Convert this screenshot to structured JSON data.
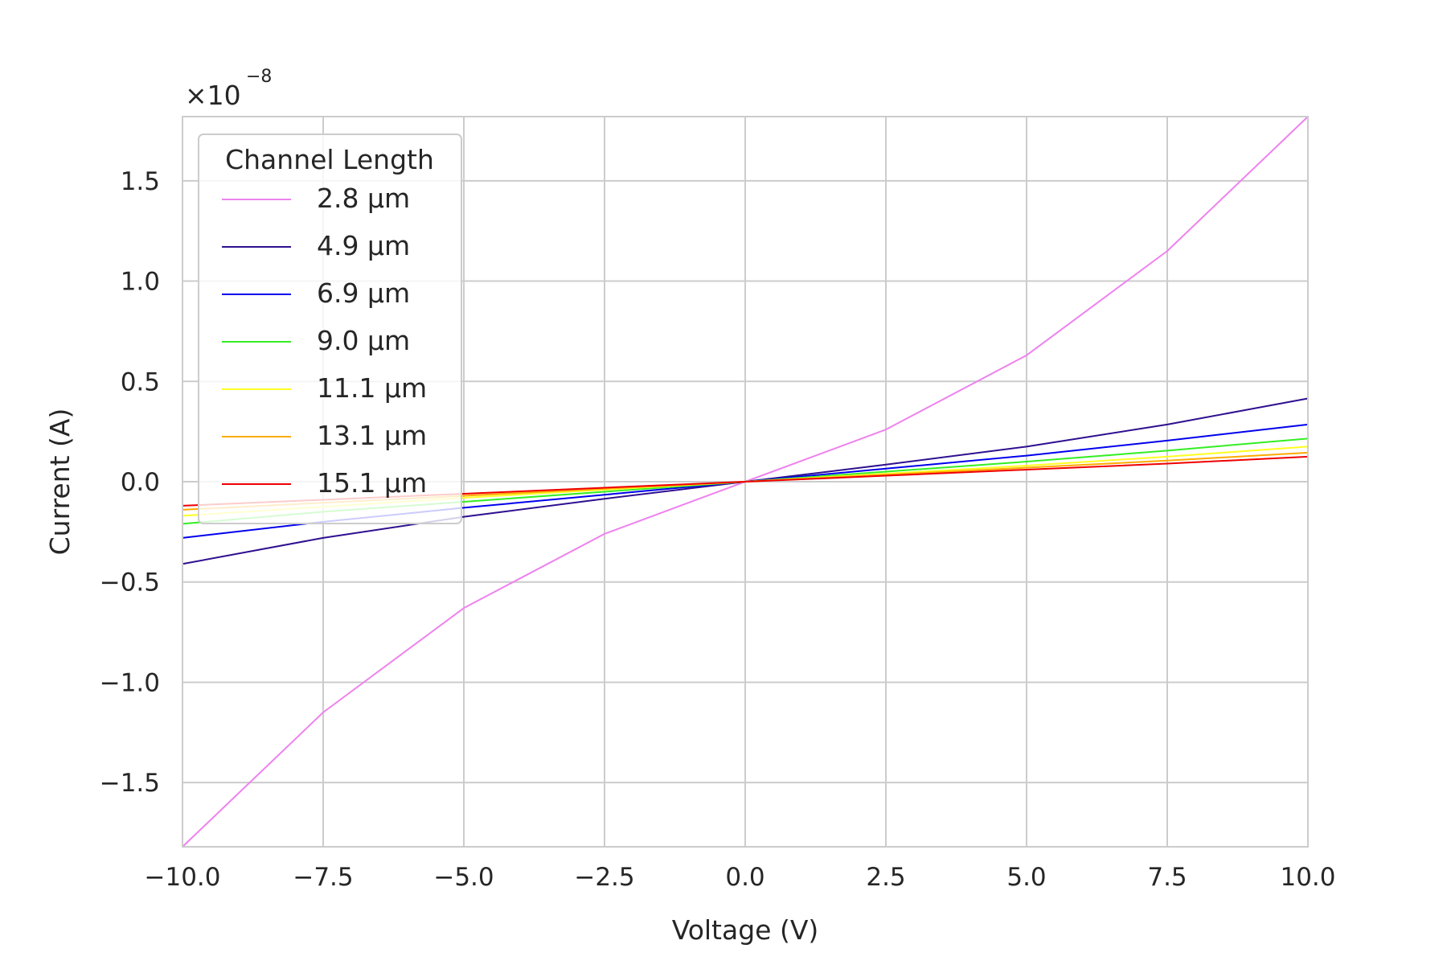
{
  "chart_data": {
    "type": "line",
    "xlabel": "Voltage (V)",
    "ylabel": "Current (A)",
    "y_offset_text": "×10",
    "y_offset_exponent": "−8",
    "xlim": [
      -10,
      10
    ],
    "ylim": [
      -1.82,
      1.82
    ],
    "x_ticks": [
      -10,
      -7.5,
      -5,
      -2.5,
      0,
      2.5,
      5,
      7.5,
      10
    ],
    "x_tick_labels": [
      "−10.0",
      "−7.5",
      "−5.0",
      "−2.5",
      "0.0",
      "2.5",
      "5.0",
      "7.5",
      "10.0"
    ],
    "y_ticks": [
      -1.5,
      -1.0,
      -0.5,
      0,
      0.5,
      1.0,
      1.5
    ],
    "y_tick_labels": [
      "−1.5",
      "−1.0",
      "−0.5",
      "0.0",
      "0.5",
      "1.0",
      "1.5"
    ],
    "grid": true,
    "legend": {
      "title": "Channel Length",
      "placement": "top-left"
    },
    "x": [
      -10,
      -7.5,
      -5,
      -2.5,
      0,
      2.5,
      5,
      7.5,
      10
    ],
    "series": [
      {
        "name": "2.8 μm",
        "color": "#ee82ee",
        "values": [
          -1.82,
          -1.15,
          -0.63,
          -0.26,
          0,
          0.26,
          0.63,
          1.15,
          1.82
        ]
      },
      {
        "name": "4.9 μm",
        "color": "#2e0f8f",
        "values": [
          -0.41,
          -0.28,
          -0.175,
          -0.085,
          0,
          0.085,
          0.175,
          0.285,
          0.415
        ]
      },
      {
        "name": "6.9 μm",
        "color": "#0000ee",
        "values": [
          -0.28,
          -0.2,
          -0.13,
          -0.065,
          0,
          0.065,
          0.13,
          0.205,
          0.285
        ]
      },
      {
        "name": "9.0 μm",
        "color": "#33ee22",
        "values": [
          -0.21,
          -0.15,
          -0.1,
          -0.05,
          0,
          0.05,
          0.1,
          0.155,
          0.215
        ]
      },
      {
        "name": "11.1 μm",
        "color": "#ffff22",
        "values": [
          -0.17,
          -0.125,
          -0.08,
          -0.04,
          0,
          0.04,
          0.08,
          0.125,
          0.175
        ]
      },
      {
        "name": "13.1 μm",
        "color": "#ffaa00",
        "values": [
          -0.14,
          -0.105,
          -0.07,
          -0.035,
          0,
          0.035,
          0.07,
          0.105,
          0.145
        ]
      },
      {
        "name": "15.1 μm",
        "color": "#ee0000",
        "values": [
          -0.12,
          -0.09,
          -0.06,
          -0.03,
          0,
          0.03,
          0.06,
          0.09,
          0.125
        ]
      }
    ]
  }
}
